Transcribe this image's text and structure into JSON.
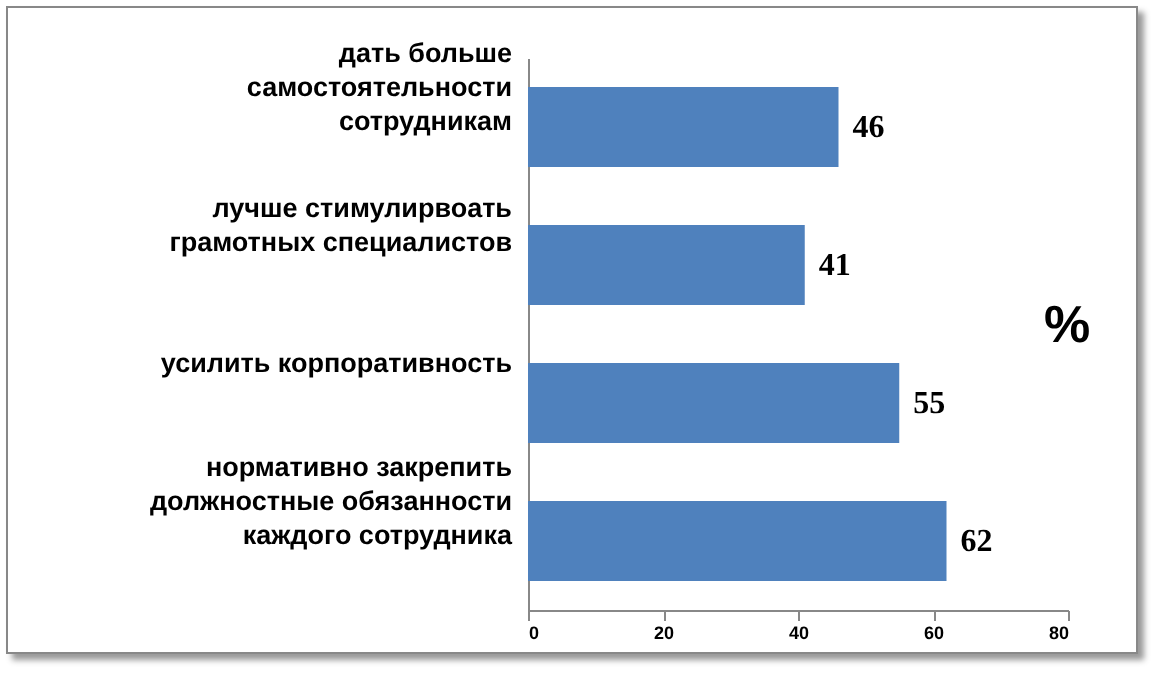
{
  "chart_data": {
    "type": "bar",
    "orientation": "horizontal",
    "categories": [
      "дать больше самостоятельности сотрудникам",
      "лучше стимулирвоать грамотных специалистов",
      "усилить корпоративность",
      "нормативно закрепить должностные обязанности каждого сотрудника"
    ],
    "values": [
      46,
      41,
      55,
      62
    ],
    "color": "#4f81bd",
    "xlim": [
      0,
      80
    ],
    "xticks": [
      0,
      20,
      40,
      60,
      80
    ],
    "data_labels": true,
    "grid": false,
    "annotations": [
      "%"
    ]
  }
}
